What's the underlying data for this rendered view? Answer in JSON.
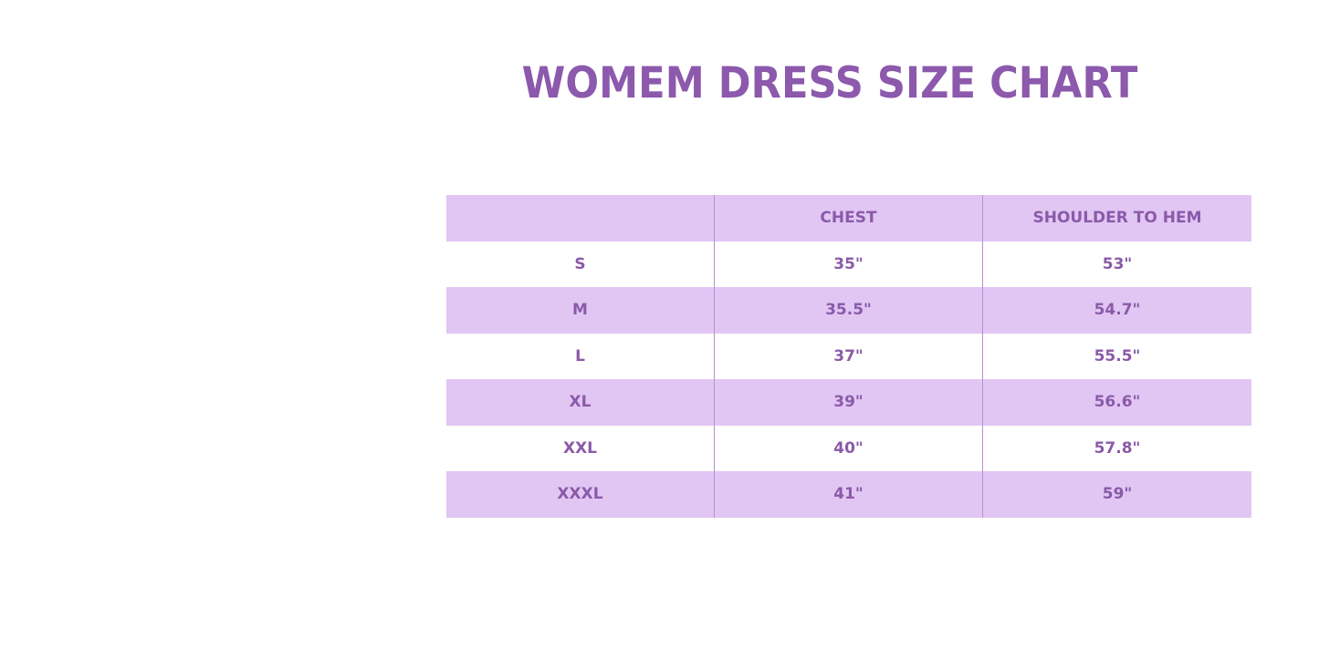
{
  "title": "WOMEM DRESS SIZE CHART",
  "colors": {
    "accent_text": "#8A5AA8",
    "band": "#E1C6F4"
  },
  "table": {
    "headers": [
      "",
      "CHEST",
      "SHOULDER TO HEM"
    ],
    "rows": [
      [
        "S",
        "35\"",
        "53\""
      ],
      [
        "M",
        "35.5\"",
        "54.7\""
      ],
      [
        "L",
        "37\"",
        "55.5\""
      ],
      [
        "XL",
        "39\"",
        "56.6\""
      ],
      [
        "XXL",
        "40\"",
        "57.8\""
      ],
      [
        "XXXL",
        "41\"",
        "59\""
      ]
    ]
  }
}
